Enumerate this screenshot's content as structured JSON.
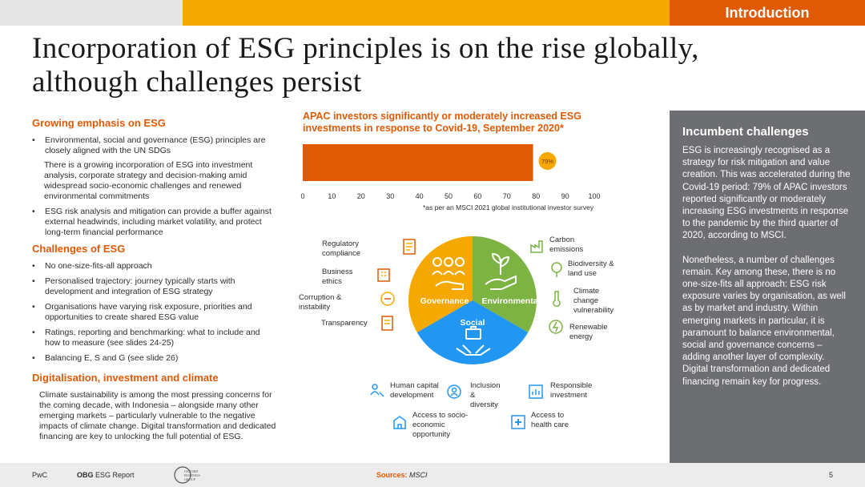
{
  "header": {
    "section_tag": "Introduction",
    "title_line1": "Incorporation of ESG principles is on the rise globally,",
    "title_line2": "although challenges persist"
  },
  "left": {
    "s1_heading": "Growing emphasis on ESG",
    "s1_b1": "Environmental, social and governance (ESG) principles are closely aligned with the UN SDGs",
    "s1_p1": "There is a growing incorporation of ESG into investment analysis, corporate strategy and decision-making amid widespread socio-economic challenges and renewed environmental commitments",
    "s1_b2": "ESG risk analysis and mitigation can provide a buffer against external headwinds, including market volatility, and protect long-term financial performance",
    "s2_heading": "Challenges of ESG",
    "s2_items": [
      "No one-size-fits-all approach",
      "Personalised trajectory: journey typically starts with development and integration of ESG strategy",
      "Organisations have varying risk exposure, priorities and opportunities to create shared ESG value",
      "Ratings, reporting and benchmarking: what to include and how to measure (see slides 24-25)",
      "Balancing E, S and G (see slide 26)"
    ],
    "s3_heading": "Digitalisation, investment and climate",
    "s3_p": "Climate sustainability is among the most pressing concerns for the coming decade, with Indonesia – alongside many other emerging markets – particularly vulnerable to the negative impacts of climate change. Digital transformation and dedicated financing are key to unlocking the full potential of ESG.",
    "bullet_char": "•"
  },
  "chart_data": {
    "type": "bar",
    "title": "APAC investors significantly or moderately increased ESG investments in response to Covid-19, September 2020*",
    "categories": [
      ""
    ],
    "values": [
      79
    ],
    "data_labels": [
      "79%"
    ],
    "xlim": [
      0,
      100
    ],
    "xticks": [
      0,
      10,
      20,
      30,
      40,
      50,
      60,
      70,
      80,
      90,
      100
    ],
    "orientation": "horizontal",
    "bar_color": "#e05a06",
    "label_color": "#f5a800",
    "footnote": "*as per an MSCI 2021 global institutional investor survey"
  },
  "diagram": {
    "segments": {
      "environmental": "Environmental",
      "governance": "Governance",
      "social": "Social"
    },
    "colors": {
      "environmental": "#7cb342",
      "governance": "#f5a800",
      "social": "#2196f3"
    },
    "governance_items": {
      "reg": "Regulatory compliance",
      "ethics": "Business ethics",
      "corruption": "Corruption & instability",
      "transparency": "Transparency"
    },
    "environmental_items": {
      "carbon": "Carbon emissions",
      "biodiversity": "Biodiversity & land use",
      "climate": "Climate change vulnerability",
      "renewable": "Renewable energy"
    },
    "social_items": {
      "human": "Human capital development",
      "inclusion": "Inclusion & diversity",
      "responsible": "Responsible investment",
      "socio": "Access to socio-economic opportunity",
      "health": "Access to health care"
    }
  },
  "panel": {
    "heading": "Incumbent challenges",
    "p1": "ESG is increasingly recognised as a strategy for risk mitigation and value creation. This was accelerated during the Covid-19 period: 79% of APAC investors reported significantly or moderately increasing ESG investments in response to the pandemic by the third quarter of 2020, according to MSCI.",
    "p2": "Nonetheless, a number of challenges remain. Key among these, there is no one-size-fits all approach: ESG risk exposure varies by organisation, as well as by market and industry. Within emerging markets in particular, it is paramount to balance environmental, social and governance concerns – adding another layer of complexity. Digital transformation and dedicated financing remain key for progress."
  },
  "footer": {
    "pwc": "PwC",
    "obg_bold": "OBG",
    "obg_rest": " ESG Report",
    "logo_text": "OXFORD BUSINESS GROUP",
    "sources_label": "Sources:",
    "sources_value": "MSCI",
    "page": "5"
  }
}
